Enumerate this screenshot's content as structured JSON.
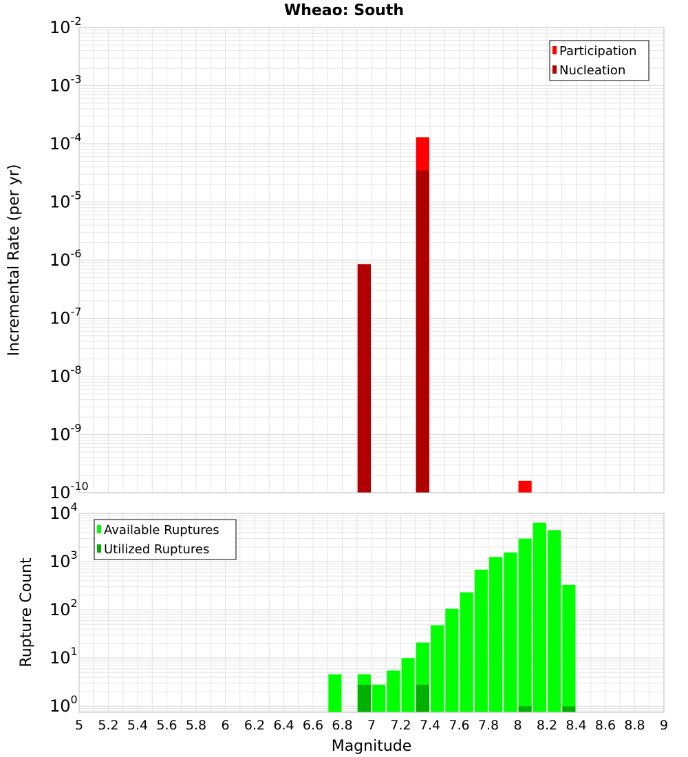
{
  "title": "Wheao: South",
  "colors": {
    "participation": "#ff0000",
    "nucleation": "#b00000",
    "available": "#00ff00",
    "utilized": "#00b000",
    "grid": "#e4e4e4",
    "frame": "#bbbbbb"
  },
  "chart_data": [
    {
      "type": "bar",
      "panel": "top",
      "ylabel": "Incremental Rate (per yr)",
      "yscale": "log",
      "ylim": [
        1e-10,
        0.01
      ],
      "xlim": [
        5,
        9
      ],
      "ytick_exponents": [
        -10,
        -9,
        -8,
        -7,
        -6,
        -5,
        -4,
        -3,
        -2
      ],
      "legend": {
        "position": "top-right",
        "entries": [
          "Participation",
          "Nucleation"
        ]
      },
      "series": [
        {
          "name": "Participation",
          "points": [
            {
              "x": 6.95,
              "y": 8.5e-07
            },
            {
              "x": 7.35,
              "y": 0.00013
            },
            {
              "x": 8.05,
              "y": 1.6e-10
            }
          ]
        },
        {
          "name": "Nucleation",
          "points": [
            {
              "x": 6.95,
              "y": 8.5e-07
            },
            {
              "x": 7.35,
              "y": 3.5e-05
            }
          ]
        }
      ]
    },
    {
      "type": "bar",
      "panel": "bottom",
      "xlabel": "Magnitude",
      "ylabel": "Rupture Count",
      "yscale": "log",
      "ylim": [
        0.75,
        10000
      ],
      "xlim": [
        5,
        9
      ],
      "ytick_exponents": [
        0,
        1,
        2,
        3,
        4
      ],
      "xticks": [
        "5",
        "5.2",
        "5.4",
        "5.6",
        "5.8",
        "6",
        "6.2",
        "6.4",
        "6.6",
        "6.8",
        "7",
        "7.2",
        "7.4",
        "7.6",
        "7.8",
        "8",
        "8.2",
        "8.4",
        "8.6",
        "8.8",
        "9"
      ],
      "legend": {
        "position": "top-left",
        "entries": [
          "Available Ruptures",
          "Utilized Ruptures"
        ]
      },
      "series": [
        {
          "name": "Available Ruptures",
          "points": [
            {
              "x": 6.75,
              "y": 4.6
            },
            {
              "x": 6.95,
              "y": 4.6
            },
            {
              "x": 7.05,
              "y": 2.8
            },
            {
              "x": 7.15,
              "y": 5.5
            },
            {
              "x": 7.25,
              "y": 10
            },
            {
              "x": 7.35,
              "y": 21
            },
            {
              "x": 7.45,
              "y": 48
            },
            {
              "x": 7.55,
              "y": 105
            },
            {
              "x": 7.65,
              "y": 230
            },
            {
              "x": 7.75,
              "y": 680
            },
            {
              "x": 7.85,
              "y": 1250
            },
            {
              "x": 7.95,
              "y": 1550
            },
            {
              "x": 8.05,
              "y": 3000
            },
            {
              "x": 8.15,
              "y": 6400
            },
            {
              "x": 8.25,
              "y": 4500
            },
            {
              "x": 8.35,
              "y": 330
            }
          ]
        },
        {
          "name": "Utilized Ruptures",
          "points": [
            {
              "x": 6.95,
              "y": 2.8
            },
            {
              "x": 7.35,
              "y": 2.8
            },
            {
              "x": 8.05,
              "y": 1
            },
            {
              "x": 8.35,
              "y": 1
            }
          ]
        }
      ]
    }
  ]
}
